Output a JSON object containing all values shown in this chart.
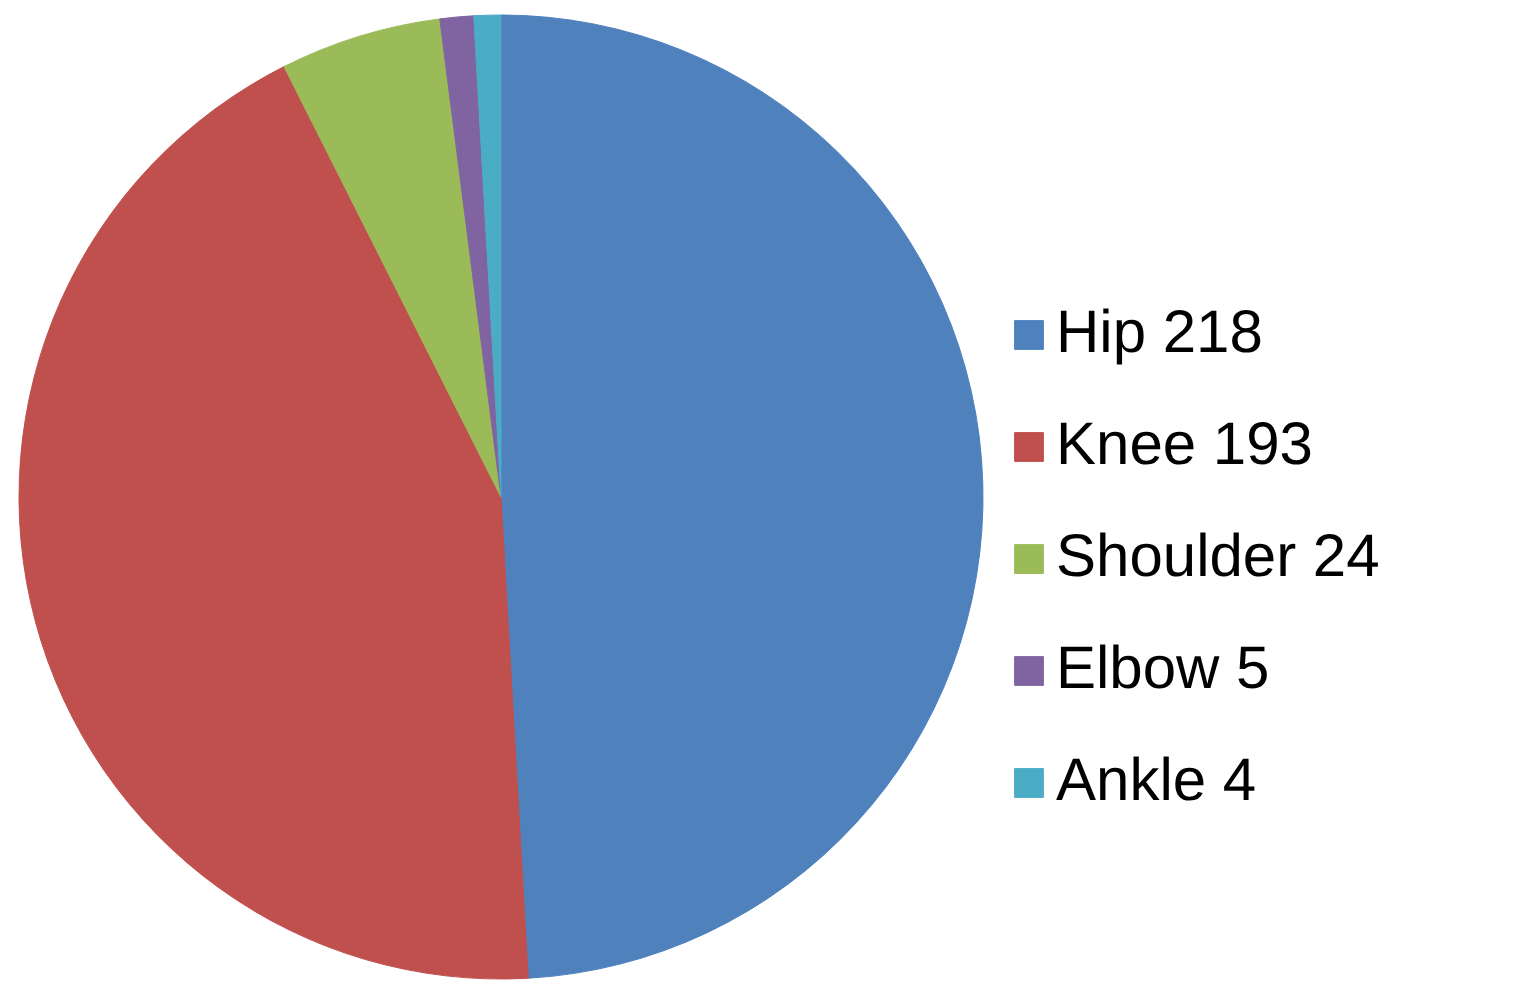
{
  "chart_data": {
    "type": "pie",
    "categories": [
      "Hip 218",
      "Knee 193",
      "Shoulder 24",
      "Elbow 5",
      "Ankle 4"
    ],
    "values": [
      218,
      193,
      24,
      5,
      4
    ],
    "colors": [
      "#4f81bd",
      "#c0504d",
      "#9bbb59",
      "#8064a2",
      "#4bacc6"
    ],
    "legend": "right"
  }
}
